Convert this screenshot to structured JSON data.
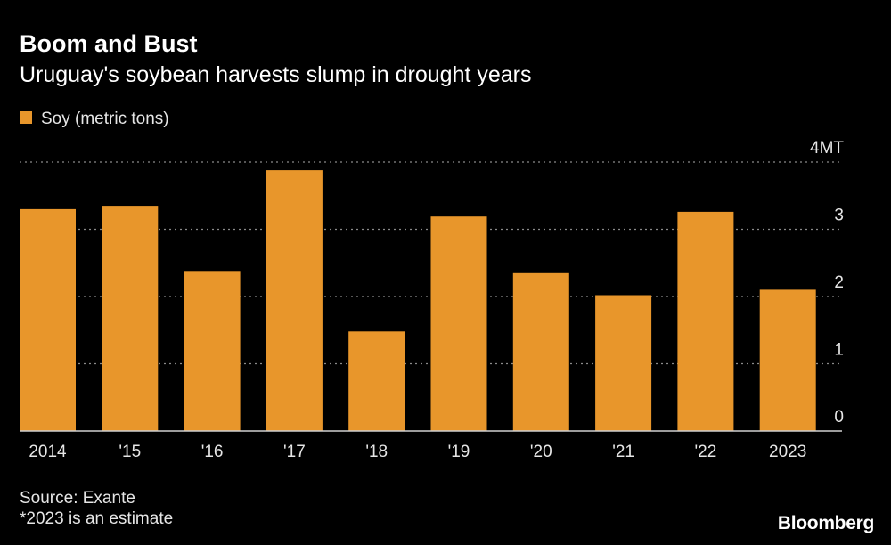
{
  "header": {
    "title": "Boom and Bust",
    "subtitle": "Uruguay's soybean harvests slump in drought years"
  },
  "legend": {
    "label": "Soy (metric tons)"
  },
  "footer": {
    "source": "Source: Exante",
    "note": "*2023 is an estimate",
    "brand": "Bloomberg"
  },
  "colors": {
    "bar": "#e8962b",
    "background": "#000000",
    "grid": "#8a8a8a",
    "axis": "#cfcfcf"
  },
  "chart_data": {
    "type": "bar",
    "title": "Boom and Bust",
    "subtitle": "Uruguay's soybean harvests slump in drought years",
    "categories": [
      "2014",
      "'15",
      "'16",
      "'17",
      "'18",
      "'19",
      "'20",
      "'21",
      "'22",
      "2023"
    ],
    "series": [
      {
        "name": "Soy (metric tons)",
        "values": [
          3.3,
          3.35,
          2.38,
          3.88,
          1.48,
          3.19,
          2.36,
          2.02,
          3.26,
          2.1
        ]
      }
    ],
    "ylim": [
      0,
      4
    ],
    "yticks": [
      0,
      1,
      2,
      3,
      4
    ],
    "ytick_labels": [
      "0",
      "1",
      "2",
      "3",
      "4MT"
    ],
    "xlabel": "",
    "ylabel": "",
    "grid": true,
    "y_axis_side": "right",
    "legend_position": "top-left"
  }
}
